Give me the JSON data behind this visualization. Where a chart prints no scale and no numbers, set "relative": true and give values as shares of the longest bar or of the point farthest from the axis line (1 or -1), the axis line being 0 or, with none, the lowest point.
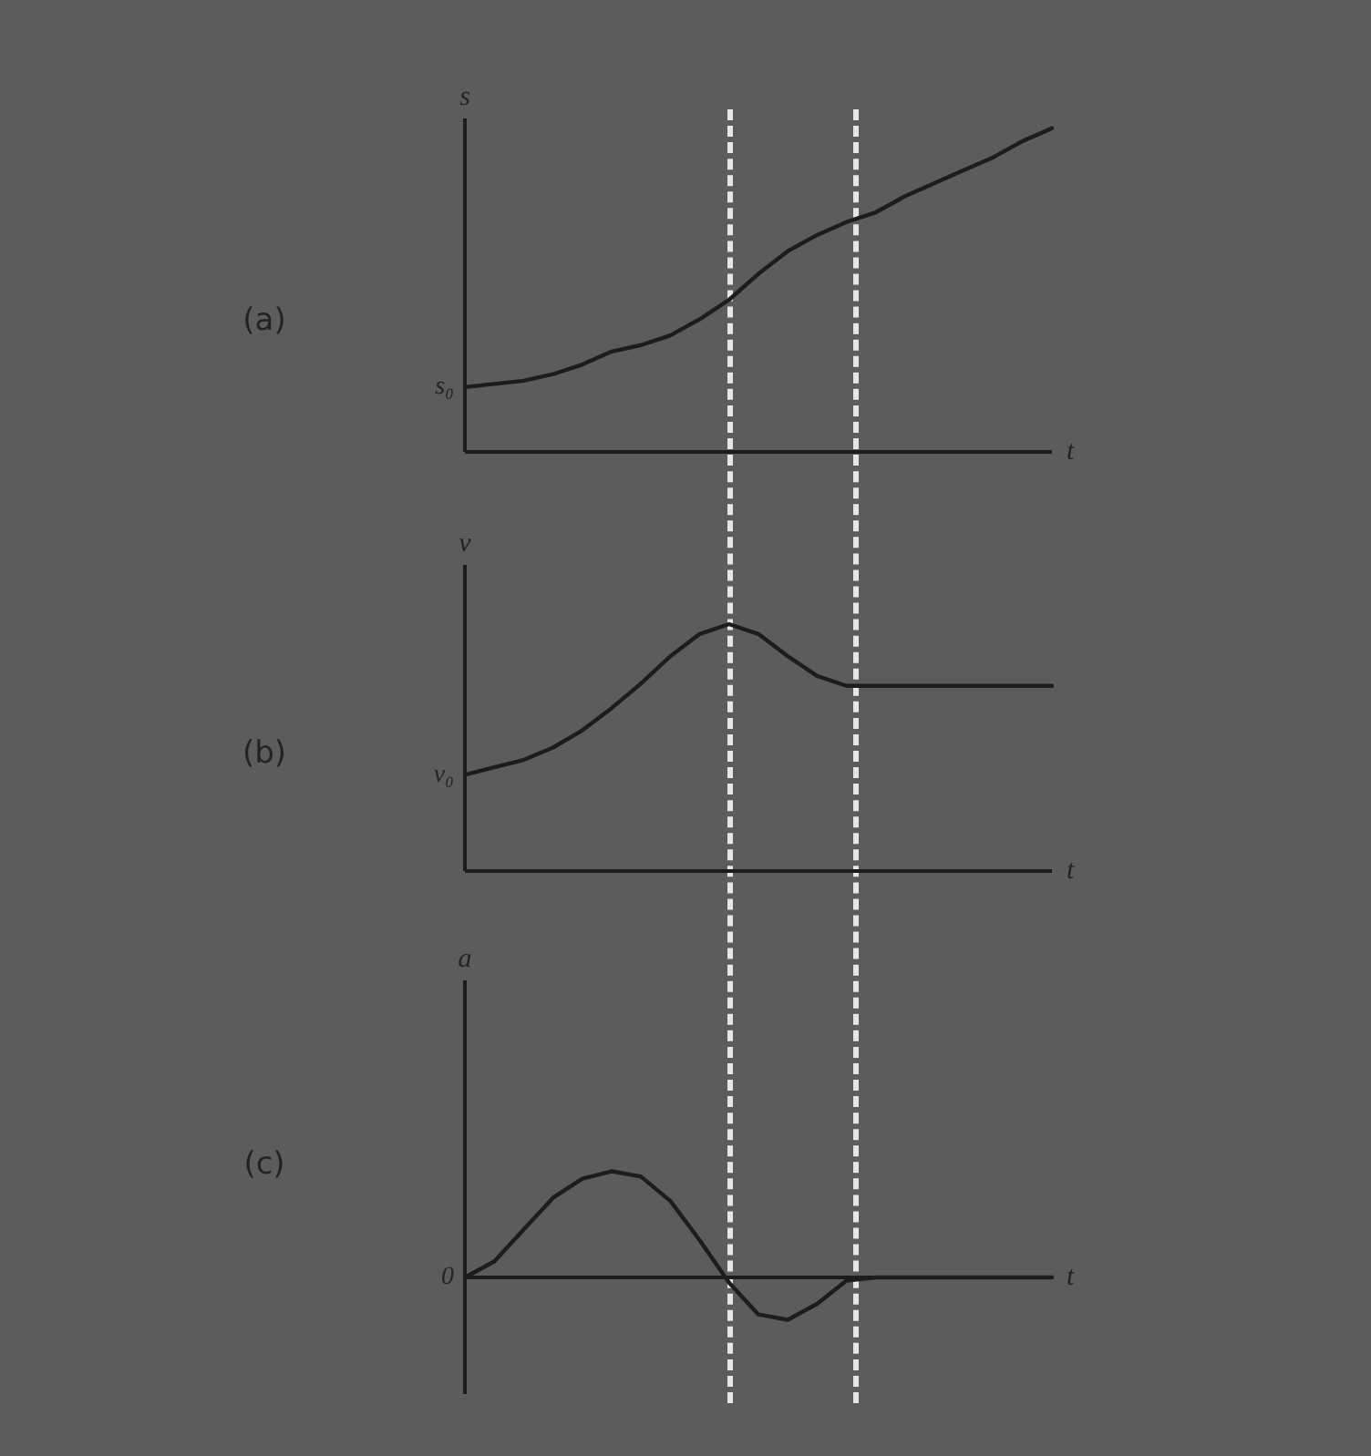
{
  "chart_data": [
    {
      "type": "line",
      "title": "(a)",
      "ylabel": "s",
      "xlabel": "t",
      "relative": true,
      "categories": [
        null,
        null,
        null,
        null,
        null,
        null,
        null,
        null,
        null,
        null,
        null,
        null,
        null,
        null,
        null,
        null,
        null,
        null,
        null,
        null,
        null
      ],
      "series": [
        {
          "color": "#1c1c1c",
          "values": [
            0.2,
            0.21,
            0.22,
            0.24,
            0.27,
            0.31,
            0.33,
            0.36,
            0.41,
            0.47,
            0.55,
            0.62,
            0.67,
            0.71,
            0.74,
            0.79,
            0.83,
            0.87,
            0.91,
            0.96,
            1
          ]
        }
      ],
      "annotations": [
        "s₀"
      ]
    },
    {
      "type": "line",
      "title": "(b)",
      "ylabel": "v",
      "xlabel": "t",
      "relative": true,
      "categories": [
        null,
        null,
        null,
        null,
        null,
        null,
        null,
        null,
        null,
        null,
        null,
        null,
        null,
        null,
        null,
        null,
        null,
        null,
        null,
        null,
        null
      ],
      "series": [
        {
          "color": "#1c1c1c",
          "values": [
            0.39,
            0.42,
            0.45,
            0.5,
            0.57,
            0.66,
            0.76,
            0.87,
            0.96,
            1,
            0.96,
            0.87,
            0.79,
            0.75,
            0.75,
            0.75,
            0.75,
            0.75,
            0.75,
            0.75,
            0.75
          ]
        }
      ],
      "annotations": [
        "v₀"
      ]
    },
    {
      "type": "line",
      "title": "(c)",
      "ylabel": "a",
      "xlabel": "t",
      "relative": true,
      "categories": [
        null,
        null,
        null,
        null,
        null,
        null,
        null,
        null,
        null,
        null,
        null,
        null,
        null,
        null,
        null,
        null,
        null,
        null,
        null,
        null,
        null
      ],
      "series": [
        {
          "color": "#1c1c1c",
          "values": [
            0,
            0.15,
            0.45,
            0.75,
            0.93,
            1,
            0.95,
            0.72,
            0.35,
            -0.05,
            -0.35,
            -0.4,
            -0.25,
            -0.03,
            0,
            0,
            0,
            0,
            0,
            0,
            0
          ]
        }
      ],
      "annotations": [
        "0"
      ]
    }
  ]
}
